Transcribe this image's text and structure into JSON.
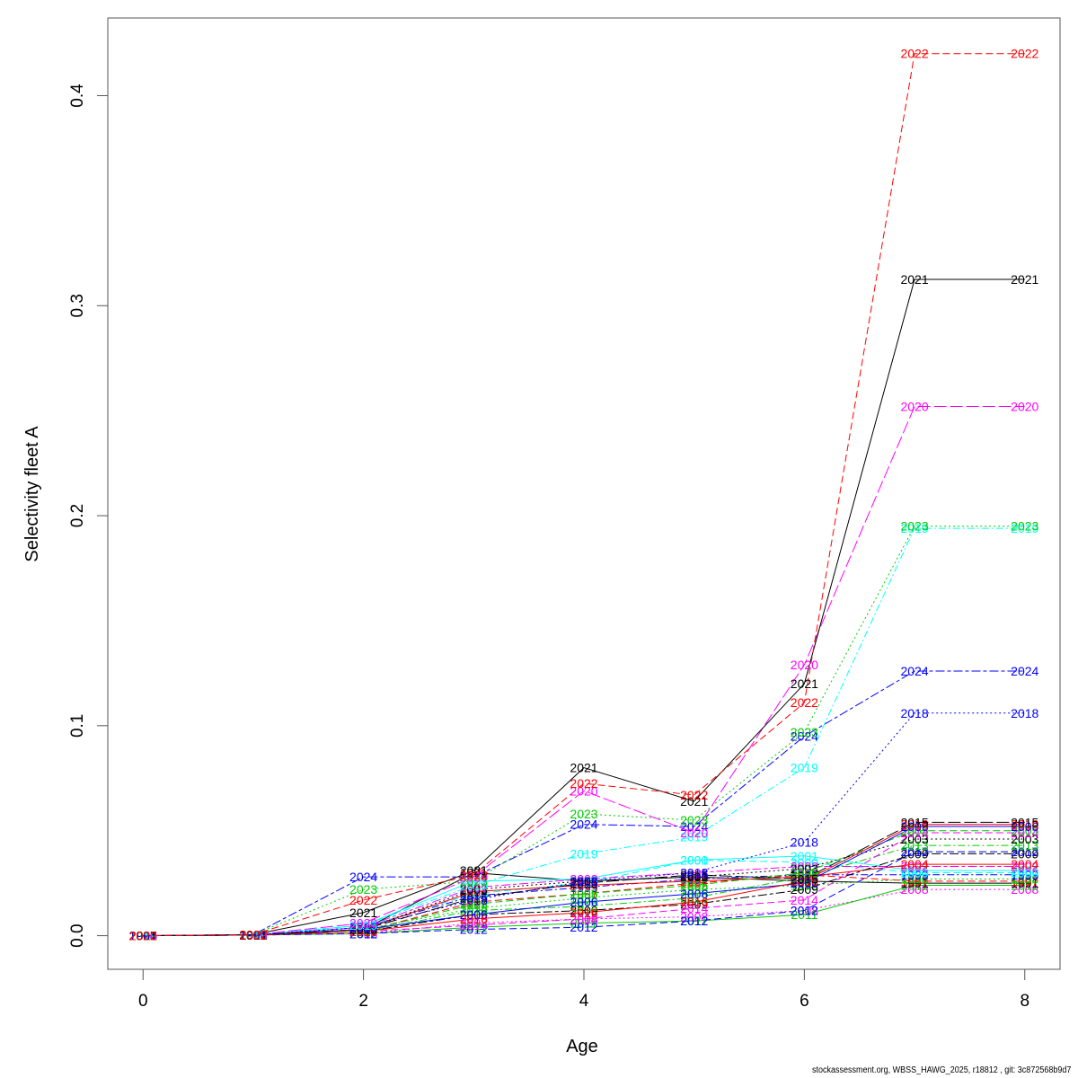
{
  "chart_data": {
    "type": "line",
    "title": "",
    "xlabel": "Age",
    "ylabel": "Selectivity fleet A",
    "xlim": [
      -0.32,
      8.32
    ],
    "ylim": [
      -0.016,
      0.437
    ],
    "x_ticks": [
      0,
      2,
      4,
      6,
      8
    ],
    "y_ticks": [
      0.0,
      0.1,
      0.2,
      0.3,
      0.4
    ],
    "x_tick_labels": [
      "0",
      "2",
      "4",
      "6",
      "8"
    ],
    "y_tick_labels": [
      "0.0",
      "0.1",
      "0.2",
      "0.3",
      "0.4"
    ],
    "grid": false,
    "legend": "none (points labelled with year)",
    "x": [
      0,
      1,
      2,
      3,
      4,
      5,
      6,
      7,
      8
    ],
    "series": [
      {
        "name": "2022",
        "color": "#ff0000",
        "dash": "dashed",
        "values": [
          0.0,
          0.0005,
          0.017,
          0.029,
          0.0725,
          0.067,
          0.111,
          0.42,
          0.42
        ]
      },
      {
        "name": "2021",
        "color": "#000000",
        "dash": "solid",
        "values": [
          0.0,
          0.0005,
          0.011,
          0.031,
          0.08,
          0.064,
          0.12,
          0.3125,
          0.3125
        ]
      },
      {
        "name": "2020",
        "color": "#ff00ff",
        "dash": "longdash",
        "values": [
          0.0,
          0.0005,
          0.006,
          0.028,
          0.069,
          0.049,
          0.129,
          0.252,
          0.252
        ]
      },
      {
        "name": "2023",
        "color": "#00cc00",
        "dash": "dotted",
        "values": [
          0.0,
          0.0005,
          0.022,
          0.026,
          0.058,
          0.055,
          0.097,
          0.195,
          0.195
        ]
      },
      {
        "name": "2019",
        "color": "#00ffff",
        "dash": "dotdash",
        "values": [
          0.0,
          0.0005,
          0.005,
          0.024,
          0.039,
          0.047,
          0.08,
          0.194,
          0.194
        ]
      },
      {
        "name": "2024",
        "color": "#0000ff",
        "dash": "twodash",
        "values": [
          0.0,
          0.0005,
          0.028,
          0.028,
          0.053,
          0.052,
          0.095,
          0.126,
          0.126
        ]
      },
      {
        "name": "2018",
        "color": "#0000ff",
        "dash": "dotted",
        "values": [
          0.0,
          0.0005,
          0.004,
          0.017,
          0.026,
          0.03,
          0.0445,
          0.106,
          0.106
        ]
      },
      {
        "name": "2015",
        "color": "#000000",
        "dash": "longdash",
        "values": [
          0.0,
          0.0003,
          0.003,
          0.018,
          0.025,
          0.029,
          0.027,
          0.054,
          0.054
        ]
      },
      {
        "name": "2016",
        "color": "#ff0000",
        "dash": "solid",
        "values": [
          0.0,
          0.0003,
          0.002,
          0.008,
          0.011,
          0.016,
          0.026,
          0.053,
          0.053
        ]
      },
      {
        "name": "2006",
        "color": "#0000ff",
        "dash": "solid",
        "values": [
          0.0,
          0.0003,
          0.003,
          0.01,
          0.016,
          0.02,
          0.025,
          0.052,
          0.052
        ]
      },
      {
        "name": "2005",
        "color": "#00cc00",
        "dash": "dashed",
        "values": [
          0.0,
          0.0003,
          0.002,
          0.015,
          0.02,
          0.024,
          0.03,
          0.05,
          0.05
        ]
      },
      {
        "name": "2014",
        "color": "#ff00ff",
        "dash": "dashed",
        "values": [
          0.0,
          0.0003,
          0.002,
          0.005,
          0.008,
          0.013,
          0.017,
          0.049,
          0.049
        ]
      },
      {
        "name": "2003",
        "color": "#000000",
        "dash": "dotted",
        "values": [
          0.0,
          0.0003,
          0.003,
          0.022,
          0.026,
          0.028,
          0.032,
          0.046,
          0.046
        ]
      },
      {
        "name": "2013",
        "color": "#00cc00",
        "dash": "dotdash",
        "values": [
          0.0,
          0.0003,
          0.002,
          0.012,
          0.014,
          0.018,
          0.028,
          0.043,
          0.043
        ]
      },
      {
        "name": "2012",
        "color": "#0000ff",
        "dash": "dashed",
        "values": [
          0.0,
          0.0003,
          0.001,
          0.003,
          0.004,
          0.007,
          0.012,
          0.04,
          0.04
        ]
      },
      {
        "name": "2009",
        "color": "#000000",
        "dash": "twodash",
        "values": [
          0.0,
          0.0003,
          0.002,
          0.01,
          0.012,
          0.015,
          0.022,
          0.039,
          0.039
        ]
      },
      {
        "name": "2004",
        "color": "#ff0000",
        "dash": "solid",
        "values": [
          0.0,
          0.0003,
          0.003,
          0.021,
          0.024,
          0.026,
          0.028,
          0.034,
          0.034
        ]
      },
      {
        "name": "2002",
        "color": "#ff00ff",
        "dash": "twodash",
        "values": [
          0.0,
          0.0003,
          0.004,
          0.023,
          0.027,
          0.03,
          0.033,
          0.033,
          0.033
        ]
      },
      {
        "name": "2001",
        "color": "#00ffff",
        "dash": "solid",
        "values": [
          0.0,
          0.0003,
          0.005,
          0.026,
          0.027,
          0.036,
          0.038,
          0.031,
          0.031
        ]
      },
      {
        "name": "2000",
        "color": "#00ffff",
        "dash": "dashed",
        "values": [
          0.0,
          0.0003,
          0.004,
          0.02,
          0.025,
          0.036,
          0.035,
          0.03,
          0.03
        ]
      },
      {
        "name": "1999",
        "color": "#0000ff",
        "dash": "dotdash",
        "values": [
          0.0,
          0.0003,
          0.004,
          0.019,
          0.023,
          0.027,
          0.029,
          0.029,
          0.029
        ]
      },
      {
        "name": "1998",
        "color": "#00cc00",
        "dash": "dotted",
        "values": [
          0.0,
          0.0003,
          0.003,
          0.013,
          0.018,
          0.022,
          0.024,
          0.027,
          0.027
        ]
      },
      {
        "name": "1997",
        "color": "#ff0000",
        "dash": "dashed",
        "values": [
          0.0,
          0.0003,
          0.002,
          0.016,
          0.02,
          0.025,
          0.029,
          0.026,
          0.026
        ]
      },
      {
        "name": "1991",
        "color": "#000000",
        "dash": "solid",
        "values": [
          0.0,
          0.0003,
          0.003,
          0.03,
          0.026,
          0.028,
          0.026,
          0.025,
          0.025
        ]
      },
      {
        "name": "2011",
        "color": "#00cc00",
        "dash": "solid",
        "values": [
          0.0,
          0.0003,
          0.001,
          0.004,
          0.006,
          0.007,
          0.01,
          0.024,
          0.024
        ]
      },
      {
        "name": "2008",
        "color": "#ff00ff",
        "dash": "dotted",
        "values": [
          0.0,
          0.0003,
          0.001,
          0.006,
          0.008,
          0.009,
          0.012,
          0.022,
          0.022
        ]
      }
    ]
  },
  "footer": "stockassessment.org, WBSS_HAWG_2025, r18812 , git: 3c872568b9d7"
}
